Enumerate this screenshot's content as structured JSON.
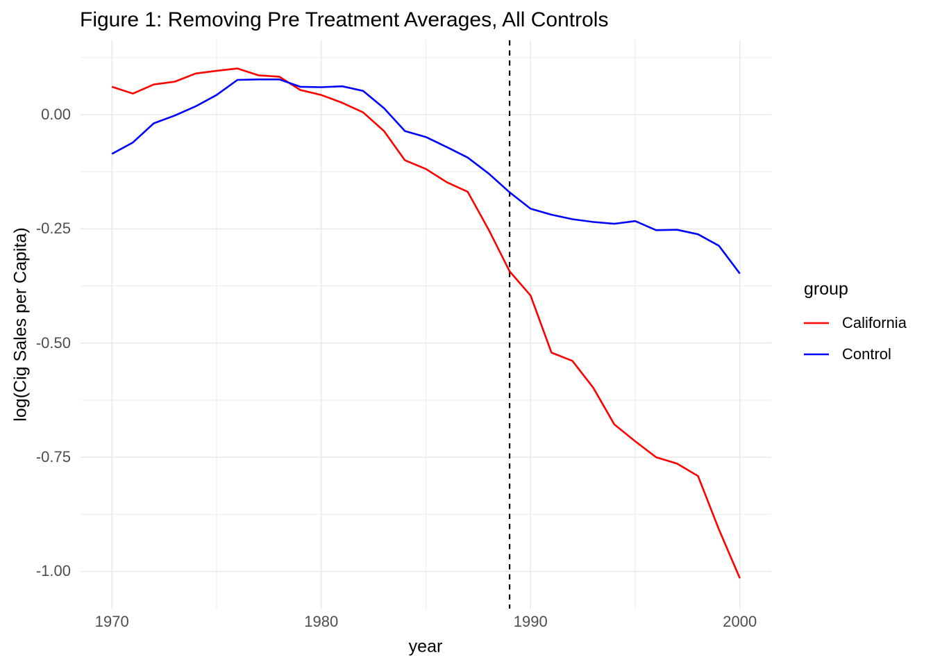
{
  "title": "Figure 1: Removing Pre Treatment Averages, All Controls",
  "chart_data": {
    "type": "line",
    "title": "Figure 1: Removing Pre Treatment Averages, All Controls",
    "xlabel": "year",
    "ylabel": "log(Cig Sales per Capita)",
    "x": [
      1970,
      1971,
      1972,
      1973,
      1974,
      1975,
      1976,
      1977,
      1978,
      1979,
      1980,
      1981,
      1982,
      1983,
      1984,
      1985,
      1986,
      1987,
      1988,
      1989,
      1990,
      1991,
      1992,
      1993,
      1994,
      1995,
      1996,
      1997,
      1998,
      1999,
      2000
    ],
    "series": [
      {
        "name": "California",
        "color": "#FF0000",
        "values": [
          0.061,
          0.046,
          0.066,
          0.072,
          0.09,
          0.096,
          0.101,
          0.086,
          0.083,
          0.054,
          0.043,
          0.026,
          0.005,
          -0.036,
          -0.1,
          -0.119,
          -0.148,
          -0.169,
          -0.252,
          -0.343,
          -0.396,
          -0.521,
          -0.539,
          -0.598,
          -0.678,
          -0.715,
          -0.75,
          -0.764,
          -0.791,
          -0.908,
          -1.015
        ]
      },
      {
        "name": "Control",
        "color": "#0000FF",
        "values": [
          -0.086,
          -0.061,
          -0.019,
          -0.002,
          0.018,
          0.043,
          0.076,
          0.077,
          0.077,
          0.061,
          0.06,
          0.062,
          0.052,
          0.014,
          -0.036,
          -0.049,
          -0.071,
          -0.094,
          -0.129,
          -0.17,
          -0.206,
          -0.219,
          -0.229,
          -0.235,
          -0.239,
          -0.233,
          -0.253,
          -0.252,
          -0.262,
          -0.287,
          -0.348
        ]
      }
    ],
    "legend": {
      "title": "group",
      "position": "right",
      "entries": [
        "California",
        "Control"
      ]
    },
    "vline": {
      "x": 1989,
      "style": "dashed",
      "color": "#000000"
    },
    "xlim": [
      1968.5,
      2001.5
    ],
    "ylim": [
      -1.0814,
      0.1627
    ],
    "xticks": [
      {
        "value": 1970,
        "label": "1970"
      },
      {
        "value": 1980,
        "label": "1980"
      },
      {
        "value": 1990,
        "label": "1990"
      },
      {
        "value": 2000,
        "label": "2000"
      }
    ],
    "xticks_minor": [
      1975,
      1985,
      1995
    ],
    "yticks": [
      {
        "value": 0,
        "label": "0.00"
      },
      {
        "value": -0.25,
        "label": "-0.25"
      },
      {
        "value": -0.5,
        "label": "-0.50"
      },
      {
        "value": -0.75,
        "label": "-0.75"
      },
      {
        "value": -1,
        "label": "-1.00"
      }
    ],
    "yticks_minor": [
      0.125,
      -0.125,
      -0.375,
      -0.625,
      -0.875
    ],
    "grid": true,
    "colors": {
      "background": "#FFFFFF",
      "grid_major": "#E8E8E8",
      "grid_minor": "#EDEDED",
      "tick_text": "#4D4D4D",
      "text": "#000000"
    }
  }
}
